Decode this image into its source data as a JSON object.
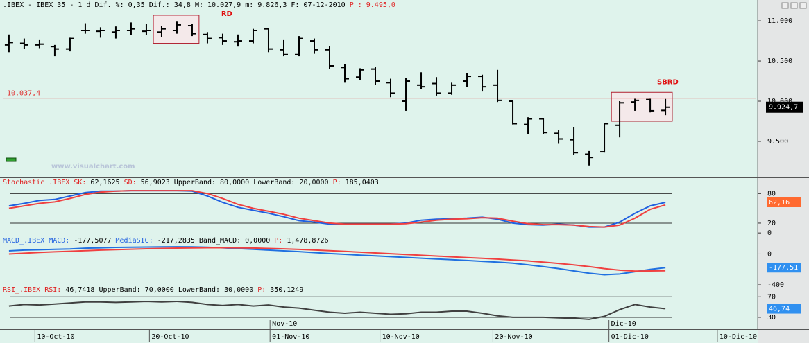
{
  "chart_data": [
    {
      "type": "ohlc",
      "header": [
        {
          "text": ".IBEX - IBEX 35 -  1 d Dif. %: 0,35 Dif.: 34,8 M: 10.027,9 m: 9.826,3 F: 07-12-2010",
          "color": "#000000"
        },
        {
          "text": "P : 9.495,0",
          "color": "#e02020"
        }
      ],
      "watermark": "www.visualchart.com",
      "color": "#000000",
      "open": [
        10700,
        10720,
        10700,
        10680,
        10650,
        10880,
        10870,
        10860,
        10880,
        10870,
        10860,
        10880,
        10940,
        10830,
        10790,
        10740,
        10750,
        10900,
        10640,
        10580,
        10750,
        10640,
        10420,
        10300,
        10400,
        10230,
        10000,
        10200,
        10220,
        10100,
        10250,
        10310,
        10200,
        10000,
        9710,
        9780,
        9600,
        9520,
        9340,
        9370,
        9700,
        9990,
        10020,
        9885
      ],
      "high": [
        10830,
        10780,
        10760,
        10700,
        10790,
        10970,
        10920,
        10930,
        10980,
        10960,
        10940,
        10990,
        10960,
        10860,
        10840,
        10830,
        10900,
        10900,
        10760,
        10810,
        10780,
        10690,
        10460,
        10410,
        10430,
        10280,
        10290,
        10360,
        10300,
        10230,
        10350,
        10330,
        10390,
        10000,
        9800,
        9790,
        9640,
        9680,
        9380,
        9730,
        10000,
        10030,
        10030,
        10027.9
      ],
      "low": [
        10610,
        10650,
        10660,
        10560,
        10620,
        10840,
        10790,
        10780,
        10820,
        10820,
        10800,
        10840,
        10810,
        10720,
        10700,
        10680,
        10720,
        10610,
        10560,
        10560,
        10590,
        10400,
        10230,
        10260,
        10200,
        10050,
        9880,
        10150,
        10070,
        10080,
        10180,
        10120,
        9990,
        9710,
        9590,
        9590,
        9470,
        9330,
        9200,
        9360,
        9550,
        9880,
        9860,
        9826.3
      ],
      "close": [
        10730,
        10700,
        10710,
        10650,
        10780,
        10880,
        10880,
        10880,
        10900,
        10880,
        10900,
        10950,
        10840,
        10780,
        10750,
        10750,
        10880,
        10650,
        10580,
        10780,
        10640,
        10440,
        10280,
        10390,
        10250,
        10100,
        10250,
        10180,
        10100,
        10200,
        10310,
        10180,
        10010,
        9720,
        9780,
        9610,
        9530,
        9360,
        9300,
        9720,
        9980,
        10010,
        9880,
        9924.7
      ],
      "last_label": "9.924,7",
      "xlim": [
        -0.36,
        48.95
      ],
      "xticks": [
        {
          "value": 1.7,
          "label": "10-Oct-10"
        },
        {
          "value": 9.2,
          "label": "20-Oct-10"
        },
        {
          "value": 17.1,
          "label": "01-Nov-10"
        },
        {
          "value": 24.3,
          "label": "10-Nov-10"
        },
        {
          "value": 31.7,
          "label": "20-Nov-10"
        },
        {
          "value": 39.3,
          "label": "01-Dic-10"
        },
        {
          "value": 46.4,
          "label": "10-Dic-10"
        }
      ],
      "month_labels": [
        {
          "value": 17.1,
          "label": "Nov-10"
        },
        {
          "value": 39.3,
          "label": "Dic-10"
        }
      ],
      "ylim": [
        9060,
        11130
      ],
      "yticks": [
        {
          "value": 11000,
          "label": "11.000"
        },
        {
          "value": 10500,
          "label": "10.500"
        },
        {
          "value": 10000,
          "label": "10.000"
        },
        {
          "value": 9500,
          "label": "9.500"
        }
      ],
      "hline": {
        "value": 10037.4,
        "label": "10.037,4",
        "color": "#e03030"
      },
      "boxes": [
        {
          "label": "RD",
          "from": 10,
          "to": 12,
          "top": 11070,
          "bottom": 10720
        },
        {
          "label": "SBRD",
          "from": 40,
          "to": 43,
          "top": 10110,
          "bottom": 9750
        }
      ]
    },
    {
      "type": "line",
      "header": [
        {
          "text": "Stochastic_.IBEX SK:",
          "color": "#e02020"
        },
        {
          "text": "62,1625",
          "color": "#000000"
        },
        {
          "text": "SD:",
          "color": "#e02020"
        },
        {
          "text": "56,9023 UpperBand: 80,0000 LowerBand: 20,0000",
          "color": "#000000"
        },
        {
          "text": "P:",
          "color": "#e02020"
        },
        {
          "text": "185,0403",
          "color": "#000000"
        }
      ],
      "series": [
        {
          "color": "#2060e0",
          "tag_color": "#ff6a30",
          "last_label": "62,16",
          "values": [
            55,
            60,
            66,
            68,
            75,
            82,
            85,
            85,
            86,
            86,
            86,
            86,
            85,
            75,
            62,
            52,
            46,
            40,
            33,
            25,
            22,
            18,
            18,
            18,
            18,
            18,
            20,
            26,
            28,
            29,
            30,
            32,
            28,
            20,
            17,
            16,
            18,
            16,
            12,
            12,
            22,
            40,
            55,
            62.16
          ]
        },
        {
          "color": "#f04040",
          "values": [
            50,
            55,
            60,
            63,
            70,
            78,
            83,
            85,
            86,
            86,
            86,
            86,
            86,
            80,
            70,
            58,
            50,
            44,
            38,
            30,
            25,
            20,
            18,
            18,
            18,
            18,
            19,
            22,
            26,
            28,
            29,
            31,
            30,
            24,
            19,
            17,
            17,
            16,
            13,
            12,
            16,
            30,
            48,
            56.9
          ]
        }
      ],
      "bands": [
        80,
        20
      ],
      "ylim": [
        -4,
        110
      ],
      "yticks": [
        80,
        20,
        0
      ]
    },
    {
      "type": "line",
      "header": [
        {
          "text": "MACD_.IBEX MACD:",
          "color": "#2060e0"
        },
        {
          "text": "-177,5077",
          "color": "#000000"
        },
        {
          "text": "MediaSIG:",
          "color": "#2060e0"
        },
        {
          "text": "-217,2835 Band_MACD: 0,0000",
          "color": "#000000"
        },
        {
          "text": "P:",
          "color": "#e02020"
        },
        {
          "text": "1,478,8726",
          "color": "#000000"
        }
      ],
      "series": [
        {
          "color": "#2070e0",
          "tag_color": "#3090f0",
          "last_label": "-177,51",
          "values": [
            40,
            50,
            55,
            60,
            65,
            75,
            80,
            85,
            88,
            90,
            92,
            93,
            92,
            88,
            80,
            70,
            60,
            50,
            40,
            30,
            18,
            5,
            -5,
            -15,
            -25,
            -35,
            -45,
            -55,
            -65,
            -75,
            -85,
            -95,
            -105,
            -120,
            -140,
            -165,
            -190,
            -220,
            -250,
            -270,
            -260,
            -230,
            -200,
            -177.51
          ]
        },
        {
          "color": "#f04040",
          "values": [
            0,
            10,
            20,
            28,
            35,
            42,
            50,
            56,
            62,
            67,
            72,
            76,
            79,
            81,
            81,
            80,
            77,
            72,
            66,
            59,
            51,
            42,
            33,
            23,
            13,
            3,
            -7,
            -17,
            -27,
            -37,
            -47,
            -57,
            -67,
            -78,
            -90,
            -105,
            -122,
            -142,
            -165,
            -190,
            -210,
            -222,
            -220,
            -217.28
          ]
        }
      ],
      "bands": [
        0
      ],
      "ylim": [
        -400,
        220
      ],
      "yticks": [
        0,
        -400
      ]
    },
    {
      "type": "line",
      "header": [
        {
          "text": "RSI_.IBEX RSI:",
          "color": "#e02020"
        },
        {
          "text": "46,7418 UpperBand: 70,0000 LowerBand: 30,0000",
          "color": "#000000"
        },
        {
          "text": "P:",
          "color": "#e02020"
        },
        {
          "text": "350,1249",
          "color": "#000000"
        }
      ],
      "series": [
        {
          "color": "#404040",
          "tag_color": "#3090f0",
          "last_label": "46,74",
          "values": [
            52,
            55,
            54,
            56,
            58,
            60,
            60,
            59,
            60,
            61,
            60,
            61,
            59,
            55,
            53,
            55,
            52,
            54,
            50,
            48,
            44,
            40,
            38,
            40,
            38,
            36,
            37,
            40,
            40,
            42,
            42,
            38,
            33,
            30,
            30,
            30,
            29,
            28,
            26,
            32,
            45,
            55,
            50,
            46.74
          ]
        }
      ],
      "bands": [
        70,
        30
      ],
      "ylim": [
        7,
        90.6
      ],
      "yticks": [
        70,
        30
      ]
    }
  ]
}
